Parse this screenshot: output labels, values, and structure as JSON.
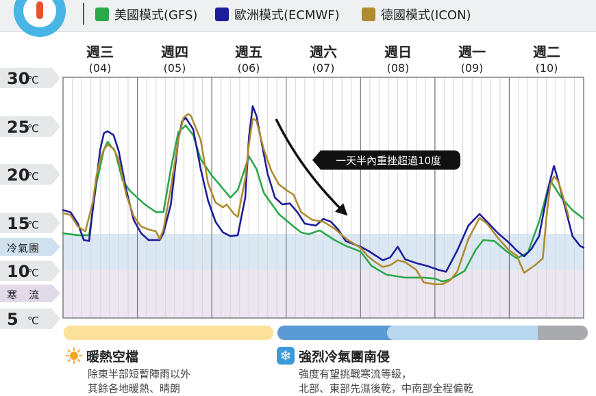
{
  "legend": [
    {
      "label": "美國模式(GFS)",
      "color": "#2aa84a"
    },
    {
      "label": "歐洲模式(ECMWF)",
      "color": "#1d1d9c"
    },
    {
      "label": "德國模式(ICON)",
      "color": "#b08a2e"
    }
  ],
  "y_labels": [
    {
      "num": "30",
      "unit": "℃"
    },
    {
      "num": "25",
      "unit": "℃"
    },
    {
      "num": "20",
      "unit": "℃"
    },
    {
      "num": "15",
      "unit": "℃"
    },
    {
      "num": "10",
      "unit": "℃"
    },
    {
      "num": "5",
      "unit": "℃"
    }
  ],
  "bands": [
    {
      "label": "冷氣團",
      "range": [
        10,
        13.75
      ],
      "color": "#dbe8f3"
    },
    {
      "label": "寒　流",
      "range": [
        5,
        10
      ],
      "color": "#ece6f0"
    }
  ],
  "days": [
    {
      "name": "週三",
      "date": "(04)"
    },
    {
      "name": "週四",
      "date": "(05)"
    },
    {
      "name": "週五",
      "date": "(06)"
    },
    {
      "name": "週六",
      "date": "(07)"
    },
    {
      "name": "週日",
      "date": "(08)"
    },
    {
      "name": "週一",
      "date": "(09)"
    },
    {
      "name": "週二",
      "date": "(10)"
    }
  ],
  "annotation": "一天半內重挫超過10度",
  "sections": {
    "warm": {
      "title": "暖熱空檔",
      "line1": "除東半部短暫陣雨以外",
      "line2": "其餘各地暖熱、晴朗"
    },
    "cold": {
      "title": "強烈冷氣團南侵",
      "line1": "強度有望挑戰寒流等級，",
      "line2": "北部、東部先濕後乾，中南部全程偏乾"
    }
  },
  "timeline_colors": {
    "warm": "#fbe19a",
    "cold": "#5b9bd5",
    "cold_light": "#b9d6ef",
    "end": "#a8aaad"
  },
  "chart_data": {
    "type": "line",
    "title": "",
    "xlabel": "",
    "ylabel": "",
    "ylim": [
      5,
      30
    ],
    "categories": [
      "週三 (04)",
      "週四 (05)",
      "週五 (06)",
      "週六 (07)",
      "週日 (08)",
      "週一 (09)",
      "週二 (10)"
    ],
    "x_unit": "days from start of 週三 (04)",
    "grid": true,
    "series": [
      {
        "name": "美國模式(GFS)",
        "color": "#2aa84a",
        "points": [
          [
            0,
            13.8
          ],
          [
            0.2,
            13.6
          ],
          [
            0.35,
            13.6
          ],
          [
            0.45,
            19.0
          ],
          [
            0.55,
            22.5
          ],
          [
            0.6,
            23.3
          ],
          [
            0.7,
            22.3
          ],
          [
            0.8,
            19.3
          ],
          [
            0.9,
            18.2
          ],
          [
            1.1,
            16.8
          ],
          [
            1.25,
            16.0
          ],
          [
            1.35,
            16.0
          ],
          [
            1.45,
            20.5
          ],
          [
            1.55,
            24.3
          ],
          [
            1.65,
            25.0
          ],
          [
            1.75,
            24.0
          ],
          [
            1.85,
            21.5
          ],
          [
            2.0,
            19.8
          ],
          [
            2.1,
            18.9
          ],
          [
            2.25,
            17.5
          ],
          [
            2.35,
            18.3
          ],
          [
            2.5,
            21.8
          ],
          [
            2.6,
            20.5
          ],
          [
            2.7,
            18.0
          ],
          [
            2.9,
            15.8
          ],
          [
            3.1,
            14.5
          ],
          [
            3.2,
            13.9
          ],
          [
            3.3,
            13.7
          ],
          [
            3.45,
            14.1
          ],
          [
            3.65,
            13.1
          ],
          [
            3.8,
            12.5
          ],
          [
            4.0,
            11.9
          ],
          [
            4.15,
            10.4
          ],
          [
            4.35,
            9.5
          ],
          [
            4.6,
            9.2
          ],
          [
            4.85,
            9.2
          ],
          [
            5.0,
            9.1
          ],
          [
            5.1,
            8.8
          ],
          [
            5.2,
            9.0
          ],
          [
            5.4,
            9.9
          ],
          [
            5.55,
            12.1
          ],
          [
            5.65,
            13.1
          ],
          [
            5.8,
            13.0
          ],
          [
            5.95,
            12.0
          ],
          [
            6.1,
            11.2
          ],
          [
            6.25,
            11.8
          ],
          [
            6.4,
            15.0
          ],
          [
            6.55,
            19.3
          ],
          [
            6.7,
            17.5
          ],
          [
            6.85,
            16.2
          ],
          [
            7.0,
            15.3
          ]
        ]
      },
      {
        "name": "歐洲模式(ECMWF)",
        "color": "#1d1d9c",
        "points": [
          [
            0,
            16.2
          ],
          [
            0.1,
            16.0
          ],
          [
            0.2,
            14.8
          ],
          [
            0.28,
            13.1
          ],
          [
            0.35,
            13.0
          ],
          [
            0.45,
            19.5
          ],
          [
            0.5,
            22.5
          ],
          [
            0.55,
            24.2
          ],
          [
            0.6,
            24.4
          ],
          [
            0.68,
            24.0
          ],
          [
            0.75,
            22.3
          ],
          [
            0.85,
            18.3
          ],
          [
            0.95,
            15.2
          ],
          [
            1.05,
            13.8
          ],
          [
            1.15,
            13.1
          ],
          [
            1.3,
            13.1
          ],
          [
            1.35,
            13.8
          ],
          [
            1.45,
            16.8
          ],
          [
            1.55,
            23.5
          ],
          [
            1.6,
            25.4
          ],
          [
            1.65,
            25.8
          ],
          [
            1.75,
            24.6
          ],
          [
            1.85,
            20.5
          ],
          [
            1.95,
            17.2
          ],
          [
            2.05,
            15.0
          ],
          [
            2.15,
            13.9
          ],
          [
            2.25,
            13.5
          ],
          [
            2.35,
            13.6
          ],
          [
            2.45,
            17.5
          ],
          [
            2.5,
            23.8
          ],
          [
            2.55,
            27.0
          ],
          [
            2.6,
            26.0
          ],
          [
            2.75,
            20.0
          ],
          [
            2.85,
            17.5
          ],
          [
            2.95,
            16.8
          ],
          [
            3.05,
            16.9
          ],
          [
            3.15,
            16.0
          ],
          [
            3.25,
            14.8
          ],
          [
            3.4,
            14.6
          ],
          [
            3.5,
            15.3
          ],
          [
            3.6,
            15.0
          ],
          [
            3.7,
            14.2
          ],
          [
            3.8,
            13.0
          ],
          [
            4.0,
            12.4
          ],
          [
            4.1,
            12.0
          ],
          [
            4.2,
            11.5
          ],
          [
            4.3,
            11.0
          ],
          [
            4.4,
            11.3
          ],
          [
            4.5,
            12.4
          ],
          [
            4.6,
            11.1
          ],
          [
            4.75,
            10.7
          ],
          [
            4.9,
            10.4
          ],
          [
            5.05,
            10.0
          ],
          [
            5.15,
            9.8
          ],
          [
            5.3,
            12.0
          ],
          [
            5.45,
            14.6
          ],
          [
            5.6,
            15.8
          ],
          [
            5.7,
            15.0
          ],
          [
            5.85,
            13.8
          ],
          [
            6.0,
            12.8
          ],
          [
            6.1,
            12.0
          ],
          [
            6.2,
            11.4
          ],
          [
            6.3,
            12.2
          ],
          [
            6.4,
            13.5
          ],
          [
            6.5,
            17.5
          ],
          [
            6.55,
            19.3
          ],
          [
            6.6,
            20.8
          ],
          [
            6.65,
            19.5
          ],
          [
            6.75,
            16.5
          ],
          [
            6.85,
            13.5
          ],
          [
            6.95,
            12.5
          ],
          [
            7.0,
            12.3
          ]
        ]
      },
      {
        "name": "德國模式(ICON)",
        "color": "#b08a2e",
        "points": [
          [
            0,
            15.9
          ],
          [
            0.1,
            15.7
          ],
          [
            0.2,
            14.5
          ],
          [
            0.3,
            14.0
          ],
          [
            0.4,
            17.0
          ],
          [
            0.45,
            19.8
          ],
          [
            0.5,
            21.5
          ],
          [
            0.55,
            22.5
          ],
          [
            0.6,
            23.0
          ],
          [
            0.68,
            22.6
          ],
          [
            0.75,
            21.4
          ],
          [
            0.85,
            17.8
          ],
          [
            0.95,
            15.6
          ],
          [
            1.05,
            14.5
          ],
          [
            1.15,
            14.2
          ],
          [
            1.25,
            14.0
          ],
          [
            1.3,
            13.2
          ],
          [
            1.35,
            14.2
          ],
          [
            1.45,
            18.5
          ],
          [
            1.55,
            23.5
          ],
          [
            1.62,
            25.8
          ],
          [
            1.68,
            26.2
          ],
          [
            1.72,
            26.0
          ],
          [
            1.85,
            23.5
          ],
          [
            1.95,
            19.0
          ],
          [
            2.05,
            17.0
          ],
          [
            2.15,
            16.5
          ],
          [
            2.2,
            16.8
          ],
          [
            2.3,
            15.8
          ],
          [
            2.35,
            15.5
          ],
          [
            2.45,
            19.5
          ],
          [
            2.5,
            23.0
          ],
          [
            2.55,
            25.7
          ],
          [
            2.6,
            25.5
          ],
          [
            2.7,
            22.5
          ],
          [
            2.8,
            20.3
          ],
          [
            2.9,
            18.9
          ],
          [
            3.0,
            18.3
          ],
          [
            3.1,
            17.8
          ],
          [
            3.2,
            16.0
          ],
          [
            3.35,
            15.2
          ],
          [
            3.5,
            15.0
          ],
          [
            3.65,
            14.3
          ],
          [
            3.75,
            13.6
          ],
          [
            3.85,
            13.0
          ],
          [
            4.0,
            12.3
          ],
          [
            4.1,
            11.4
          ],
          [
            4.2,
            10.8
          ],
          [
            4.3,
            10.3
          ],
          [
            4.4,
            10.5
          ],
          [
            4.5,
            11.0
          ],
          [
            4.6,
            10.8
          ],
          [
            4.75,
            10.0
          ],
          [
            4.85,
            8.7
          ],
          [
            5.0,
            8.5
          ],
          [
            5.1,
            8.5
          ],
          [
            5.2,
            8.9
          ],
          [
            5.3,
            9.8
          ],
          [
            5.45,
            13.2
          ],
          [
            5.6,
            15.4
          ],
          [
            5.7,
            14.8
          ],
          [
            5.85,
            13.3
          ],
          [
            6.0,
            12.0
          ],
          [
            6.1,
            11.5
          ],
          [
            6.2,
            9.7
          ],
          [
            6.35,
            10.5
          ],
          [
            6.45,
            11.2
          ],
          [
            6.5,
            15.5
          ],
          [
            6.55,
            18.8
          ],
          [
            6.6,
            19.7
          ],
          [
            6.65,
            19.3
          ],
          [
            6.7,
            18.2
          ],
          [
            6.8,
            15.5
          ]
        ]
      }
    ]
  }
}
